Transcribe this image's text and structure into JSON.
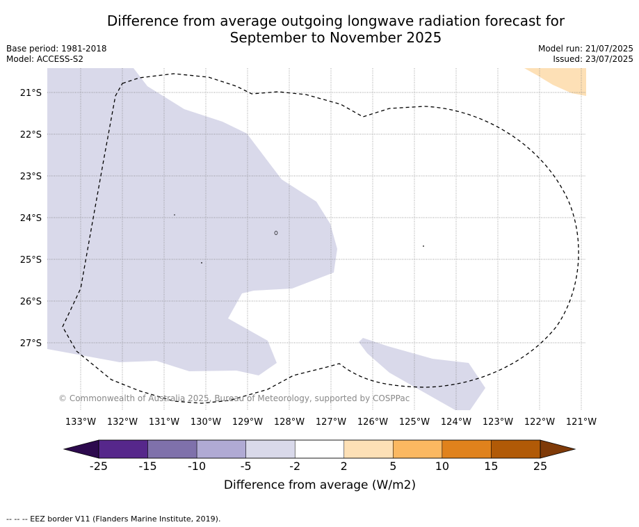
{
  "title_line1": "Difference from average outgoing longwave radiation forecast for",
  "title_line2": "September to November 2025",
  "base_period": "Base period: 1981-2018",
  "model": "Model: ACCESS-S2",
  "model_run": "Model run: 21/07/2025",
  "issued": "Issued: 23/07/2025",
  "copyright": "© Commonwealth of Australia 2025, Bureau of Meteorology, supported by COSPPac",
  "footer": "--  --  -- EEZ border V11 (Flanders Marine Institute, 2019).",
  "map": {
    "lat_labels": [
      "21°S",
      "22°S",
      "23°S",
      "24°S",
      "25°S",
      "26°S",
      "27°S"
    ],
    "lon_labels": [
      "133°W",
      "132°W",
      "131°W",
      "130°W",
      "129°W",
      "128°W",
      "127°W",
      "126°W",
      "125°W",
      "124°W",
      "123°W",
      "122°W",
      "121°W"
    ]
  },
  "colorbar": {
    "label": "Difference from average (W/m2)",
    "ticks": [
      "-25",
      "-15",
      "-10",
      "-5",
      "-2",
      "2",
      "5",
      "10",
      "15",
      "25"
    ],
    "colors": [
      "#56278b",
      "#7f71ab",
      "#b0aad4",
      "#d9d9ea",
      "#ffffff",
      "#fde0b6",
      "#fbb861",
      "#e0821c",
      "#b15a07"
    ],
    "low_extend_color": "#2d0a4e",
    "high_extend_color": "#7f3a08"
  }
}
